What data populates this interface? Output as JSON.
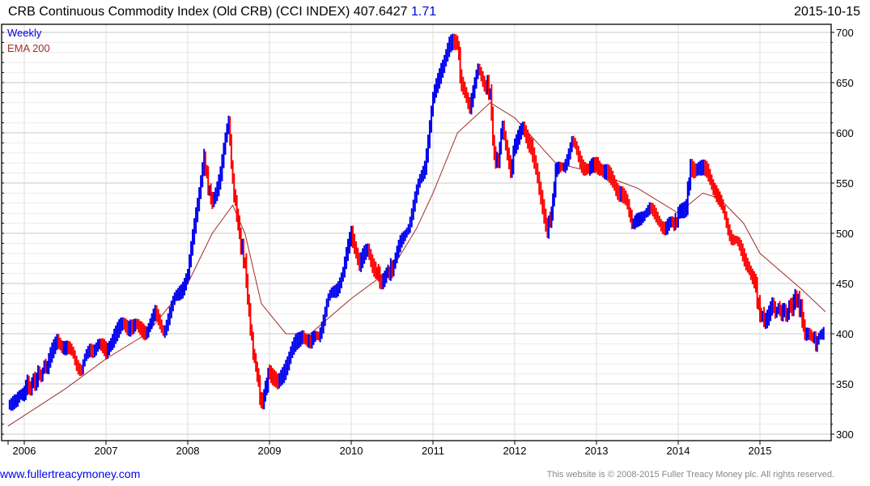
{
  "header": {
    "title": "CRB Continuous Commodity Index (Old CRB) (CCI INDEX)",
    "last": "407.6427",
    "change": "1.71",
    "date": "2015-10-15"
  },
  "footer": {
    "link": "www.fullertreacymoney.com",
    "copyright": "This website is © 2008-2015 Fuller Treacy Money plc. All rights reserved."
  },
  "colors": {
    "up": "#0000ee",
    "down": "#ff0000",
    "ema": "#a52a2a"
  },
  "chart_data": {
    "type": "line",
    "title": "CRB Continuous Commodity Index (Old CRB) (CCI INDEX)",
    "legend": [
      {
        "label": "Weekly",
        "color": "#0000ee"
      },
      {
        "label": "EMA 200",
        "color": "#a52a2a"
      }
    ],
    "legend_position": "top-left",
    "xlim": [
      2005.8,
      2015.85
    ],
    "ylim": [
      300,
      705
    ],
    "xticks": [
      "2006",
      "2007",
      "2008",
      "2009",
      "2010",
      "2011",
      "2012",
      "2013",
      "2014",
      "2015"
    ],
    "yticks": [
      "300",
      "350",
      "400",
      "450",
      "500",
      "550",
      "600",
      "650",
      "700"
    ],
    "grid": true,
    "series": [
      {
        "name": "Weekly",
        "points": [
          [
            2005.8,
            333
          ],
          [
            2005.9,
            330
          ],
          [
            2006.0,
            345
          ],
          [
            2006.15,
            355
          ],
          [
            2006.3,
            370
          ],
          [
            2006.4,
            395
          ],
          [
            2006.5,
            385
          ],
          [
            2006.6,
            380
          ],
          [
            2006.7,
            365
          ],
          [
            2006.8,
            385
          ],
          [
            2006.9,
            390
          ],
          [
            2007.0,
            380
          ],
          [
            2007.1,
            400
          ],
          [
            2007.2,
            405
          ],
          [
            2007.3,
            410
          ],
          [
            2007.4,
            402
          ],
          [
            2007.5,
            405
          ],
          [
            2007.6,
            420
          ],
          [
            2007.7,
            405
          ],
          [
            2007.8,
            425
          ],
          [
            2007.9,
            445
          ],
          [
            2008.0,
            455
          ],
          [
            2008.1,
            520
          ],
          [
            2008.2,
            575
          ],
          [
            2008.25,
            545
          ],
          [
            2008.3,
            530
          ],
          [
            2008.4,
            560
          ],
          [
            2008.5,
            610
          ],
          [
            2008.55,
            550
          ],
          [
            2008.6,
            520
          ],
          [
            2008.65,
            490
          ],
          [
            2008.7,
            470
          ],
          [
            2008.75,
            420
          ],
          [
            2008.8,
            380
          ],
          [
            2008.85,
            360
          ],
          [
            2008.9,
            330
          ],
          [
            2008.95,
            345
          ],
          [
            2009.0,
            365
          ],
          [
            2009.1,
            345
          ],
          [
            2009.2,
            370
          ],
          [
            2009.3,
            385
          ],
          [
            2009.4,
            400
          ],
          [
            2009.5,
            390
          ],
          [
            2009.6,
            400
          ],
          [
            2009.7,
            430
          ],
          [
            2009.8,
            445
          ],
          [
            2009.9,
            460
          ],
          [
            2010.0,
            500
          ],
          [
            2010.1,
            470
          ],
          [
            2010.2,
            480
          ],
          [
            2010.3,
            465
          ],
          [
            2010.35,
            455
          ],
          [
            2010.45,
            460
          ],
          [
            2010.5,
            465
          ],
          [
            2010.6,
            490
          ],
          [
            2010.7,
            510
          ],
          [
            2010.8,
            540
          ],
          [
            2010.9,
            570
          ],
          [
            2011.0,
            630
          ],
          [
            2011.1,
            665
          ],
          [
            2011.2,
            685
          ],
          [
            2011.3,
            690
          ],
          [
            2011.35,
            645
          ],
          [
            2011.45,
            630
          ],
          [
            2011.55,
            660
          ],
          [
            2011.65,
            650
          ],
          [
            2011.7,
            640
          ],
          [
            2011.75,
            575
          ],
          [
            2011.8,
            570
          ],
          [
            2011.85,
            610
          ],
          [
            2011.95,
            560
          ],
          [
            2012.0,
            590
          ],
          [
            2012.1,
            600
          ],
          [
            2012.2,
            590
          ],
          [
            2012.3,
            540
          ],
          [
            2012.4,
            505
          ],
          [
            2012.45,
            520
          ],
          [
            2012.5,
            560
          ],
          [
            2012.6,
            570
          ],
          [
            2012.7,
            590
          ],
          [
            2012.8,
            575
          ],
          [
            2012.9,
            560
          ],
          [
            2013.0,
            570
          ],
          [
            2013.1,
            560
          ],
          [
            2013.2,
            550
          ],
          [
            2013.3,
            540
          ],
          [
            2013.4,
            520
          ],
          [
            2013.45,
            505
          ],
          [
            2013.55,
            520
          ],
          [
            2013.65,
            525
          ],
          [
            2013.75,
            515
          ],
          [
            2013.85,
            505
          ],
          [
            2013.95,
            508
          ],
          [
            2014.0,
            515
          ],
          [
            2014.1,
            530
          ],
          [
            2014.15,
            565
          ],
          [
            2014.25,
            565
          ],
          [
            2014.35,
            560
          ],
          [
            2014.45,
            545
          ],
          [
            2014.55,
            520
          ],
          [
            2014.65,
            500
          ],
          [
            2014.75,
            485
          ],
          [
            2014.85,
            470
          ],
          [
            2014.95,
            445
          ],
          [
            2015.0,
            420
          ],
          [
            2015.05,
            415
          ],
          [
            2015.15,
            425
          ],
          [
            2015.3,
            420
          ],
          [
            2015.45,
            435
          ],
          [
            2015.5,
            425
          ],
          [
            2015.55,
            400
          ],
          [
            2015.65,
            395
          ],
          [
            2015.7,
            390
          ],
          [
            2015.8,
            408
          ]
        ]
      },
      {
        "name": "EMA 200",
        "points": [
          [
            2005.8,
            308
          ],
          [
            2006.5,
            345
          ],
          [
            2007.0,
            375
          ],
          [
            2007.5,
            400
          ],
          [
            2008.0,
            450
          ],
          [
            2008.3,
            500
          ],
          [
            2008.55,
            528
          ],
          [
            2008.7,
            500
          ],
          [
            2008.9,
            430
          ],
          [
            2009.2,
            400
          ],
          [
            2009.5,
            400
          ],
          [
            2010.0,
            435
          ],
          [
            2010.5,
            465
          ],
          [
            2010.8,
            505
          ],
          [
            2011.0,
            540
          ],
          [
            2011.3,
            600
          ],
          [
            2011.7,
            630
          ],
          [
            2012.0,
            615
          ],
          [
            2012.5,
            570
          ],
          [
            2013.0,
            560
          ],
          [
            2013.5,
            545
          ],
          [
            2014.0,
            520
          ],
          [
            2014.3,
            540
          ],
          [
            2014.5,
            535
          ],
          [
            2014.8,
            510
          ],
          [
            2015.0,
            480
          ],
          [
            2015.5,
            445
          ],
          [
            2015.8,
            422
          ]
        ]
      }
    ]
  }
}
